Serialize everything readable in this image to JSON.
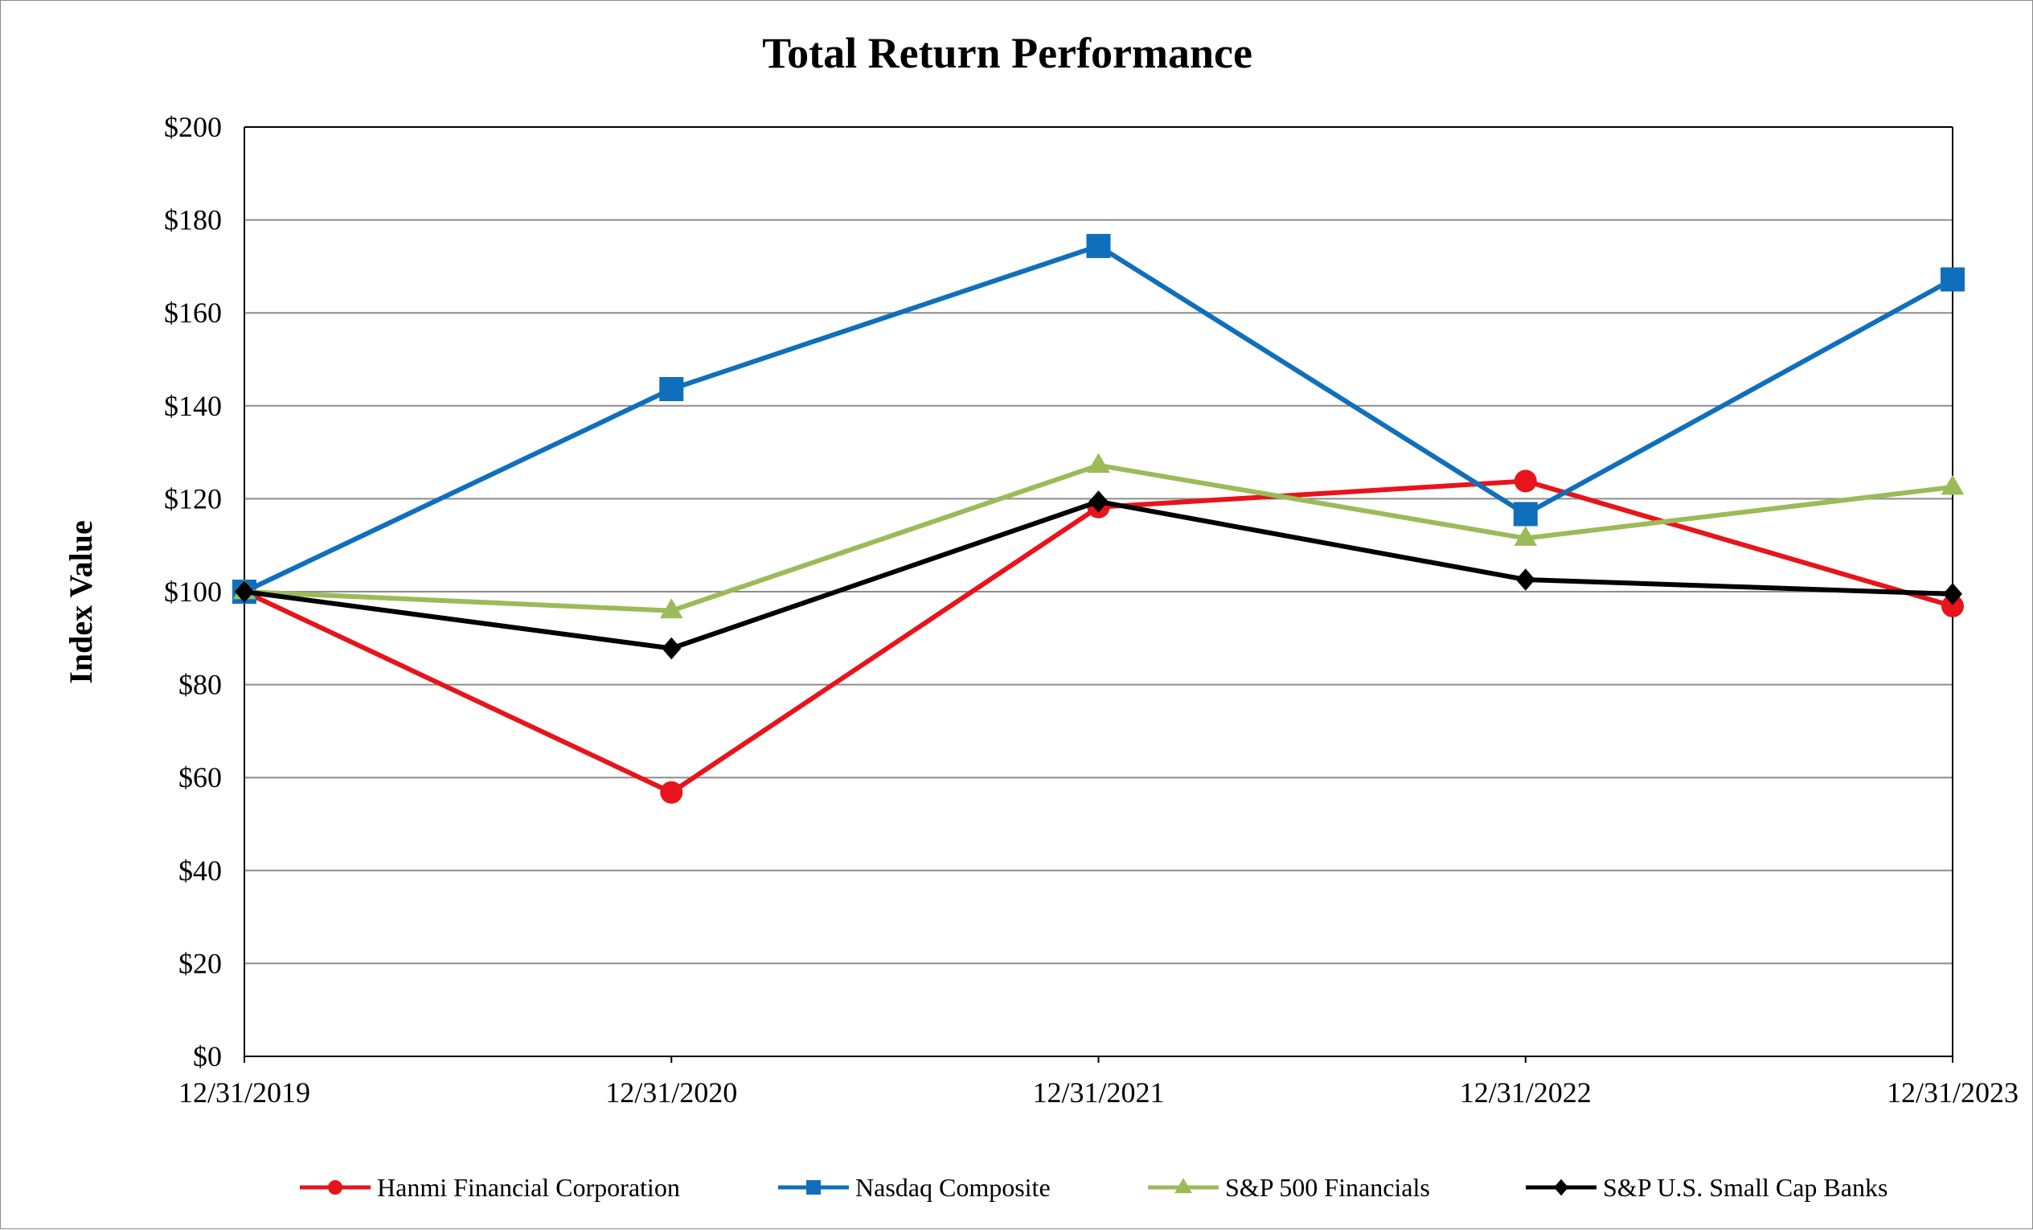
{
  "chart_data": {
    "type": "line",
    "title": "Total Return Performance",
    "xlabel": "",
    "ylabel": "Index Value",
    "categories": [
      "12/31/2019",
      "12/31/2020",
      "12/31/2021",
      "12/31/2022",
      "12/31/2023"
    ],
    "ylim": [
      0,
      200
    ],
    "yticks": [
      0,
      20,
      40,
      60,
      80,
      100,
      120,
      140,
      160,
      180,
      200
    ],
    "ytick_labels": [
      "$0",
      "$20",
      "$40",
      "$60",
      "$80",
      "$100",
      "$120",
      "$140",
      "$160",
      "$180",
      "$200"
    ],
    "grid": true,
    "legend_position": "bottom",
    "series": [
      {
        "name": "Hanmi Financial Corporation",
        "color": "#e8141b",
        "marker": "circle",
        "values": [
          100,
          56.8,
          118.2,
          123.8,
          96.9
        ]
      },
      {
        "name": "Nasdaq Composite",
        "color": "#0f6fbd",
        "marker": "square",
        "values": [
          100,
          143.6,
          174.4,
          116.7,
          167.2
        ]
      },
      {
        "name": "S&P 500 Financials",
        "color": "#9bbb59",
        "marker": "triangle",
        "values": [
          100,
          95.9,
          127.2,
          111.5,
          122.5
        ]
      },
      {
        "name": "S&P U.S. Small Cap Banks",
        "color": "#000000",
        "marker": "diamond",
        "values": [
          100,
          87.8,
          119.4,
          102.6,
          99.5
        ]
      }
    ]
  }
}
